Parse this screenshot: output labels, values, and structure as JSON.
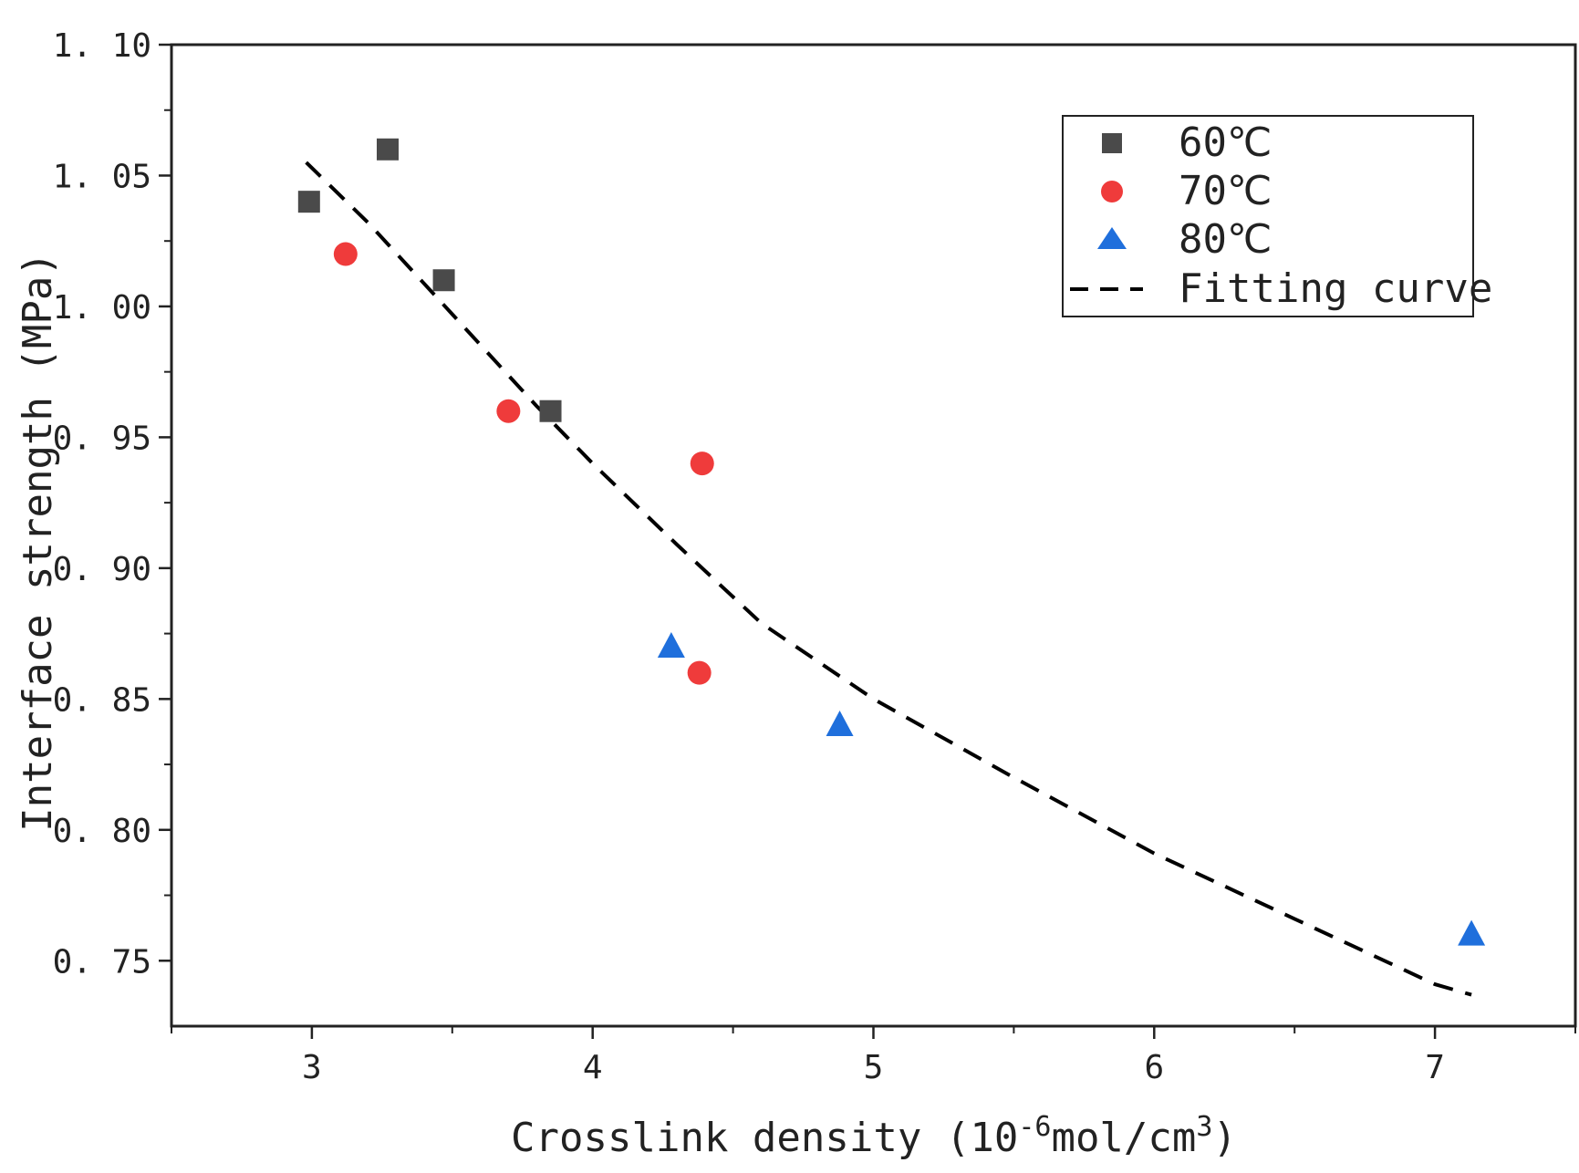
{
  "chart_data": {
    "type": "scatter",
    "title": "",
    "xlabel_main": "Crosslink density (10",
    "xlabel_sup1": "-6",
    "xlabel_mid": "mol/cm",
    "xlabel_sup2": "3",
    "xlabel_end": ")",
    "ylabel": "Interface strength (MPa)",
    "xlim": [
      2.5,
      7.5
    ],
    "ylim": [
      0.725,
      1.1
    ],
    "x_ticks": [
      3,
      4,
      5,
      6,
      7
    ],
    "x_tick_labels": [
      "3",
      "4",
      "5",
      "6",
      "7"
    ],
    "y_ticks": [
      0.75,
      0.8,
      0.85,
      0.9,
      0.95,
      1.0,
      1.05,
      1.1
    ],
    "y_tick_labels": [
      "0. 75",
      "0. 80",
      "0. 85",
      "0. 90",
      "0. 95",
      "1. 00",
      "1. 05",
      "1. 10"
    ],
    "grid": false,
    "legend_position": "top-right",
    "series": [
      {
        "name": "60℃",
        "marker": "square",
        "color": "#4a4a4a",
        "points": [
          {
            "x": 2.99,
            "y": 1.04
          },
          {
            "x": 3.27,
            "y": 1.06
          },
          {
            "x": 3.47,
            "y": 1.01
          },
          {
            "x": 3.85,
            "y": 0.96
          }
        ]
      },
      {
        "name": "70℃",
        "marker": "circle",
        "color": "#ef3b3b",
        "points": [
          {
            "x": 3.12,
            "y": 1.02
          },
          {
            "x": 3.7,
            "y": 0.96
          },
          {
            "x": 4.39,
            "y": 0.94
          },
          {
            "x": 4.38,
            "y": 0.86
          }
        ]
      },
      {
        "name": "80℃",
        "marker": "triangle",
        "color": "#1f6fdc",
        "points": [
          {
            "x": 4.28,
            "y": 0.87
          },
          {
            "x": 4.88,
            "y": 0.84
          },
          {
            "x": 7.13,
            "y": 0.76
          }
        ]
      },
      {
        "name": "Fitting curve",
        "style": "dashed",
        "color": "#000000",
        "points": [
          {
            "x": 2.98,
            "y": 1.055
          },
          {
            "x": 3.2,
            "y": 1.032
          },
          {
            "x": 3.5,
            "y": 0.997
          },
          {
            "x": 3.8,
            "y": 0.962
          },
          {
            "x": 4.0,
            "y": 0.94
          },
          {
            "x": 4.3,
            "y": 0.909
          },
          {
            "x": 4.6,
            "y": 0.879
          },
          {
            "x": 5.0,
            "y": 0.85
          },
          {
            "x": 5.5,
            "y": 0.82
          },
          {
            "x": 6.0,
            "y": 0.791
          },
          {
            "x": 6.5,
            "y": 0.766
          },
          {
            "x": 7.0,
            "y": 0.741
          },
          {
            "x": 7.13,
            "y": 0.737
          }
        ]
      }
    ]
  }
}
